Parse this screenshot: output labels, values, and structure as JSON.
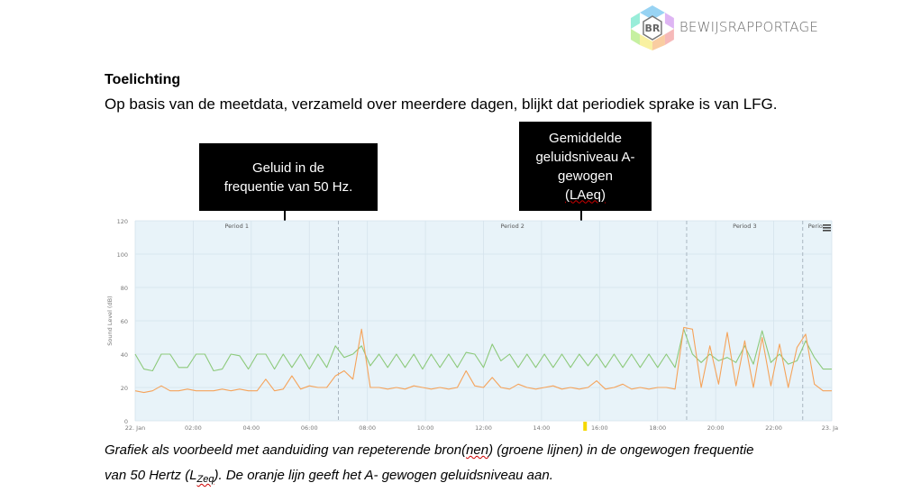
{
  "logo": {
    "text": "BEWIJSRAPPORTAGE",
    "monogram": "BR"
  },
  "heading": "Toelichting",
  "intro": "Op basis van de meetdata, verzameld over meerdere dagen, blijkt dat periodiek sprake is van LFG.",
  "callouts": [
    {
      "lines": [
        "Geluid in de",
        "frequentie van 50 Hz."
      ]
    },
    {
      "lines": [
        "Gemiddelde",
        "geluidsniveau A-",
        "gewogen",
        "(LAeq)"
      ]
    }
  ],
  "caption": {
    "line1_a": "Grafiek als voorbeeld met aanduiding van repeterende bron(",
    "line1_b": "nen",
    "line1_c": ") (groene lijnen) in de ongewogen frequentie",
    "line2_a": "van 50 Hertz (L",
    "line2_b": "Zeq",
    "line2_c": "). De oranje lijn geeft het A- gewogen geluidsniveau aan."
  },
  "colors": {
    "green": "#8cc97a",
    "orange": "#f5a35a",
    "plot_bg": "#e8f3f9",
    "grid": "#d5e3ec",
    "marker": "#f5d800"
  },
  "chart_data": {
    "type": "line",
    "title": "",
    "xlabel": "",
    "ylabel": "Sound Level (dB)",
    "ylim": [
      0,
      120
    ],
    "yticks": [
      0,
      20,
      40,
      60,
      80,
      100,
      120
    ],
    "xticks": [
      "22. Jan",
      "02:00",
      "04:00",
      "06:00",
      "08:00",
      "10:00",
      "12:00",
      "14:00",
      "16:00",
      "18:00",
      "20:00",
      "22:00",
      "23. Jan"
    ],
    "x_hours_range": [
      0,
      24
    ],
    "grid": true,
    "legend": "none",
    "period_bands": [
      {
        "label": "Period 1",
        "start_h": 0,
        "end_h": 7.0
      },
      {
        "label": "Period 2",
        "start_h": 7.0,
        "end_h": 19.0
      },
      {
        "label": "Period 3",
        "start_h": 19.0,
        "end_h": 23.0
      },
      {
        "label": "Perio",
        "start_h": 23.0,
        "end_h": 24
      }
    ],
    "marker_h": 15.5,
    "series": [
      {
        "name": "LZeq 50 Hz (green)",
        "x": [
          0,
          0.3,
          0.6,
          0.9,
          1.2,
          1.5,
          1.8,
          2.1,
          2.4,
          2.7,
          3.0,
          3.3,
          3.6,
          3.9,
          4.2,
          4.5,
          4.8,
          5.1,
          5.4,
          5.7,
          6.0,
          6.3,
          6.6,
          6.9,
          7.2,
          7.5,
          7.8,
          8.1,
          8.4,
          8.7,
          9.0,
          9.3,
          9.6,
          9.9,
          10.2,
          10.5,
          10.8,
          11.1,
          11.4,
          11.7,
          12.0,
          12.3,
          12.6,
          12.9,
          13.2,
          13.5,
          13.8,
          14.1,
          14.4,
          14.7,
          15.0,
          15.3,
          15.6,
          15.9,
          16.2,
          16.5,
          16.8,
          17.1,
          17.4,
          17.7,
          18.0,
          18.3,
          18.6,
          18.9,
          19.2,
          19.5,
          19.8,
          20.1,
          20.4,
          20.7,
          21.0,
          21.3,
          21.6,
          21.9,
          22.2,
          22.5,
          22.8,
          23.1,
          23.4,
          23.7,
          24.0
        ],
        "values": [
          40,
          31,
          30,
          40,
          40,
          32,
          32,
          40,
          40,
          30,
          31,
          40,
          39,
          31,
          40,
          40,
          31,
          40,
          32,
          40,
          31,
          40,
          32,
          45,
          38,
          40,
          45,
          33,
          40,
          32,
          40,
          32,
          40,
          31,
          40,
          32,
          40,
          32,
          41,
          40,
          32,
          46,
          36,
          40,
          32,
          40,
          32,
          40,
          32,
          40,
          32,
          40,
          33,
          40,
          32,
          40,
          32,
          40,
          32,
          40,
          32,
          40,
          32,
          55,
          40,
          35,
          40,
          36,
          38,
          35,
          45,
          34,
          54,
          35,
          40,
          34,
          36,
          48,
          38,
          31,
          31
        ]
      },
      {
        "name": "LAeq (orange)",
        "x": [
          0,
          0.3,
          0.6,
          0.9,
          1.2,
          1.5,
          1.8,
          2.1,
          2.4,
          2.7,
          3.0,
          3.3,
          3.6,
          3.9,
          4.2,
          4.5,
          4.8,
          5.1,
          5.4,
          5.7,
          6.0,
          6.3,
          6.6,
          6.9,
          7.2,
          7.5,
          7.8,
          8.1,
          8.4,
          8.7,
          9.0,
          9.3,
          9.6,
          9.9,
          10.2,
          10.5,
          10.8,
          11.1,
          11.4,
          11.7,
          12.0,
          12.3,
          12.6,
          12.9,
          13.2,
          13.5,
          13.8,
          14.1,
          14.4,
          14.7,
          15.0,
          15.3,
          15.6,
          15.9,
          16.2,
          16.5,
          16.8,
          17.1,
          17.4,
          17.7,
          18.0,
          18.3,
          18.6,
          18.9,
          19.2,
          19.5,
          19.8,
          20.1,
          20.4,
          20.7,
          21.0,
          21.3,
          21.6,
          21.9,
          22.2,
          22.5,
          22.8,
          23.1,
          23.4,
          23.7,
          24.0
        ],
        "values": [
          18,
          17,
          18,
          21,
          18,
          18,
          19,
          18,
          18,
          18,
          19,
          18,
          19,
          18,
          18,
          25,
          18,
          19,
          27,
          19,
          21,
          20,
          20,
          27,
          30,
          25,
          55,
          20,
          20,
          19,
          20,
          19,
          21,
          20,
          19,
          20,
          19,
          20,
          30,
          21,
          20,
          26,
          20,
          19,
          22,
          20,
          19,
          20,
          21,
          19,
          20,
          19,
          20,
          24,
          19,
          20,
          22,
          19,
          20,
          19,
          20,
          20,
          19,
          56,
          55,
          20,
          45,
          22,
          53,
          21,
          48,
          20,
          50,
          21,
          46,
          20,
          44,
          52,
          22,
          18,
          18
        ]
      }
    ]
  }
}
